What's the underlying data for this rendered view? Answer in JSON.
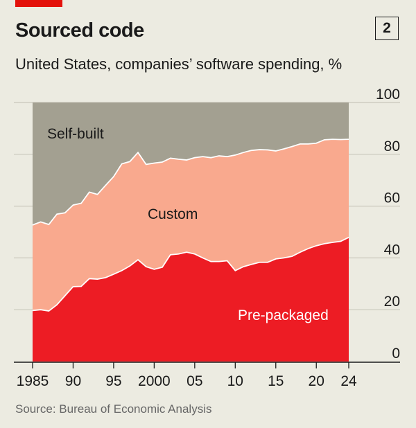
{
  "header": {
    "title": "Sourced code",
    "badge": "2",
    "subtitle": "United States, companies’ software spending, %"
  },
  "footer": {
    "source": "Source: Bureau of Economic Analysis"
  },
  "chart_data": {
    "type": "area",
    "stacked": true,
    "title": "Sourced code",
    "subtitle": "United States, companies’ software spending, %",
    "x_start": 1985,
    "x_end": 2024,
    "xlim": [
      1985,
      2024
    ],
    "ylim": [
      0,
      100
    ],
    "x_ticks": [
      1985,
      1990,
      1995,
      2000,
      2005,
      2010,
      2015,
      2020,
      2024
    ],
    "x_tick_labels": [
      "1985",
      "90",
      "95",
      "2000",
      "05",
      "10",
      "15",
      "20",
      "24"
    ],
    "y_ticks": [
      0,
      20,
      40,
      60,
      80,
      100
    ],
    "y_tick_labels": [
      "0",
      "20",
      "40",
      "60",
      "80",
      "100"
    ],
    "y_axis_side": "right",
    "grid": true,
    "colors": {
      "background": "#ECEBE1",
      "Pre-packaged": "#ED1C24",
      "Custom": "#F9A98E",
      "Self-built": "#A3A091",
      "brand": "#E3120B"
    },
    "series": [
      {
        "name": "Pre-packaged",
        "values": [
          19.7,
          20,
          19.5,
          21.9,
          25.4,
          28.9,
          29,
          32,
          31.8,
          32.4,
          33.7,
          35.1,
          36.9,
          39.3,
          36.6,
          35.6,
          36.4,
          41.2,
          41.5,
          42.2,
          41.5,
          40,
          38.6,
          38.6,
          38.9,
          35.1,
          36.6,
          37.5,
          38.3,
          38.3,
          39.6,
          40,
          40.6,
          42.2,
          43.6,
          44.7,
          45.5,
          46,
          46.4,
          47.9
        ]
      },
      {
        "name": "Custom",
        "values": [
          33.0,
          33.9,
          33.4,
          35.0,
          32.0,
          31.5,
          32.1,
          33.4,
          32.7,
          35.6,
          37.7,
          41.2,
          40.3,
          41.4,
          39.5,
          41.0,
          40.6,
          37.3,
          36.6,
          35.6,
          37.2,
          39.1,
          40.1,
          40.8,
          40.2,
          44.6,
          44.1,
          44.0,
          43.5,
          43.4,
          41.7,
          42.1,
          42.4,
          41.8,
          40.4,
          39.6,
          40.1,
          39.8,
          39.3,
          37.9
        ]
      },
      {
        "name": "Self-built",
        "values": [
          47.3,
          46.1,
          47.1,
          43.1,
          42.6,
          39.6,
          38.9,
          34.6,
          35.5,
          32,
          28.6,
          23.7,
          22.8,
          19.3,
          23.9,
          23.4,
          23,
          21.5,
          21.9,
          22.2,
          21.3,
          20.9,
          21.3,
          20.6,
          20.9,
          20.3,
          19.3,
          18.5,
          18.2,
          18.3,
          18.7,
          17.9,
          17,
          16,
          16,
          15.7,
          14.4,
          14.2,
          14.3,
          14.2
        ]
      }
    ]
  }
}
